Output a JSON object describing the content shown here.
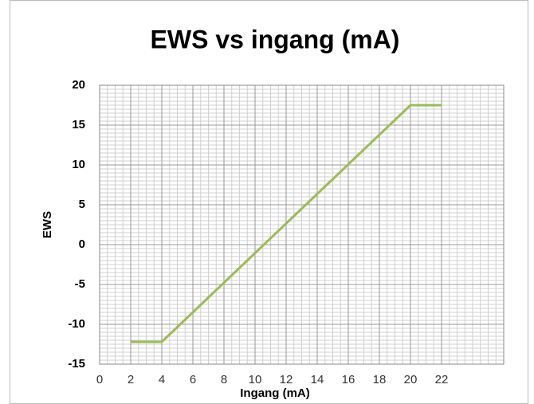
{
  "chart_data": {
    "type": "line",
    "title": "EWS vs ingang (mA)",
    "x_label": "Ingang (mA)",
    "y_label": "EWS",
    "x": [
      2,
      4,
      20,
      22
    ],
    "series": [
      {
        "name": "EWS",
        "color": "#9bbb59",
        "values": [
          -12.2,
          -12.2,
          17.5,
          17.5
        ]
      }
    ],
    "xlim": [
      0,
      26
    ],
    "xticks": [
      0,
      2,
      4,
      6,
      8,
      10,
      12,
      14,
      16,
      18,
      20,
      22
    ],
    "ylim": [
      -15,
      20
    ],
    "yticks": [
      -15,
      -10,
      -5,
      0,
      5,
      10,
      15,
      20
    ],
    "grid": true
  }
}
